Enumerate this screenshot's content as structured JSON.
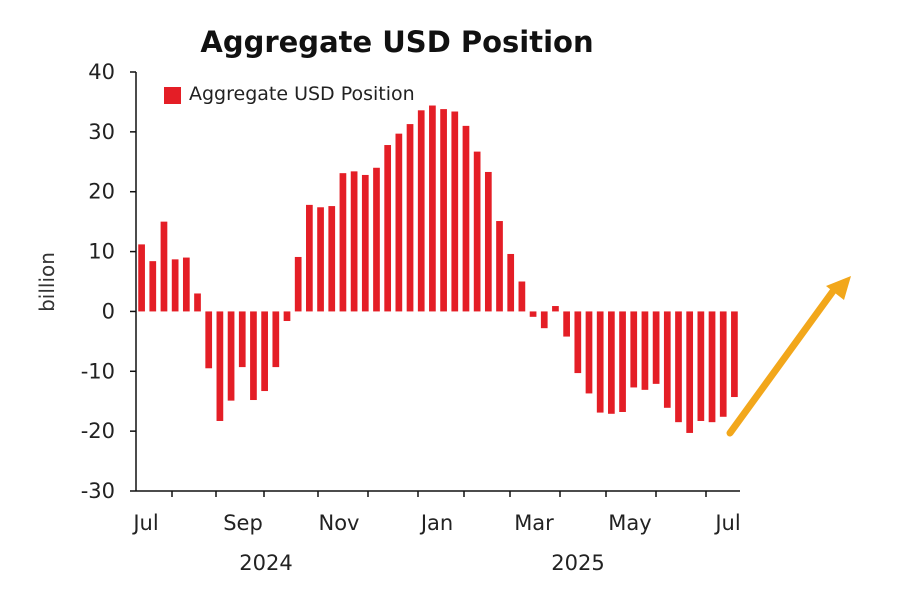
{
  "chart_data": {
    "type": "bar",
    "title": "Aggregate USD Position",
    "ylabel": "billion",
    "xlabel": "",
    "ylim": [
      -30,
      40
    ],
    "yticks": [
      40,
      30,
      20,
      10,
      0,
      -10,
      -20,
      -30
    ],
    "x_month_labels": [
      "Jul",
      "Sep",
      "Nov",
      "Jan",
      "Mar",
      "May",
      "Jul"
    ],
    "x_year_labels": [
      "2024",
      "2025"
    ],
    "legend": {
      "label": "Aggregate USD Position",
      "position": "top-left"
    },
    "grid": false,
    "series": [
      {
        "name": "Aggregate USD Position",
        "color": "#e41e26",
        "values": [
          11.2,
          8.4,
          15.0,
          8.7,
          9.0,
          3.0,
          -9.5,
          -18.3,
          -14.9,
          -9.3,
          -14.8,
          -13.3,
          -9.3,
          -1.6,
          9.1,
          17.8,
          17.4,
          17.6,
          23.1,
          23.4,
          22.8,
          24.0,
          27.8,
          29.7,
          31.3,
          33.6,
          34.4,
          33.8,
          33.4,
          31.0,
          26.7,
          23.3,
          15.1,
          9.6,
          5.0,
          -0.9,
          -2.8,
          0.9,
          -4.2,
          -10.3,
          -13.7,
          -16.9,
          -17.1,
          -16.8,
          -12.7,
          -13.1,
          -12.1,
          -16.1,
          -18.5,
          -20.3,
          -18.3,
          -18.5,
          -17.6,
          -14.3
        ]
      }
    ],
    "annotation": {
      "type": "arrow",
      "color": "#f2a71b",
      "direction": "up-right"
    }
  }
}
